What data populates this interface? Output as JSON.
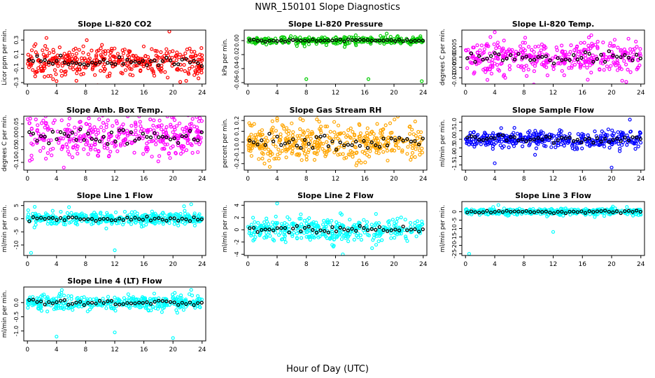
{
  "figure": {
    "title": "NWR_150101  Slope Diagnostics",
    "xlabel": "Hour of Day (UTC)"
  },
  "chart_data": [
    {
      "type": "scatter",
      "title": "Slope Li-820 CO2",
      "ylabel": "Licor ppm per min.",
      "xlim": [
        -0.5,
        24.5
      ],
      "xticks": [
        0,
        4,
        8,
        12,
        16,
        20,
        24
      ],
      "ylim": [
        -0.32,
        0.44
      ],
      "yticks": [
        -0.3,
        -0.1,
        0.1,
        0.3
      ],
      "ytick_labels": [
        "-0.3",
        "-0.1",
        "0.1",
        "0.3"
      ],
      "color": "#ff0000",
      "spread": 0.1,
      "n": 380,
      "mean_points": 45,
      "outliers": [
        [
          4,
          -0.28
        ],
        [
          19.5,
          0.42
        ],
        [
          21,
          -0.29
        ],
        [
          23.5,
          -0.24
        ]
      ]
    },
    {
      "type": "scatter",
      "title": "Slope Li-820 Pressure",
      "ylabel": "kPa per min.",
      "xlim": [
        -0.5,
        24.5
      ],
      "xticks": [
        0,
        4,
        8,
        12,
        16,
        20,
        24
      ],
      "ylim": [
        -0.062,
        0.015
      ],
      "yticks": [
        -0.06,
        -0.04,
        -0.02,
        0
      ],
      "ytick_labels": [
        "-0.06",
        "-0.04",
        "-0.02",
        "0.00"
      ],
      "color": "#00cc00",
      "spread": 0.003,
      "n": 300,
      "mean_points": 45,
      "outliers": [
        [
          8,
          -0.055
        ],
        [
          16.5,
          -0.055
        ],
        [
          23.8,
          -0.058
        ],
        [
          19,
          0.01
        ]
      ]
    },
    {
      "type": "scatter",
      "title": "Slope Li-820 Temp.",
      "ylabel": "degrees C per min.",
      "xlim": [
        -0.5,
        24.5
      ],
      "xticks": [
        0,
        4,
        8,
        12,
        16,
        20,
        24
      ],
      "ylim": [
        -0.013,
        0.013
      ],
      "yticks": [
        -0.01,
        -0.005,
        0,
        0.005
      ],
      "ytick_labels": [
        "-0.010",
        "-0.005",
        "0.000",
        "0.005"
      ],
      "color": "#ff00ff",
      "spread": 0.004,
      "n": 380,
      "mean_points": 45,
      "outliers": [
        [
          4,
          0.012
        ],
        [
          3,
          -0.011
        ],
        [
          22,
          -0.012
        ]
      ]
    },
    {
      "type": "scatter",
      "title": "Slope Amb. Box Temp.",
      "ylabel": "degrees C per min.",
      "xlim": [
        -0.5,
        24.5
      ],
      "xticks": [
        0,
        4,
        8,
        12,
        16,
        20,
        24
      ],
      "ylim": [
        -0.13,
        0.08
      ],
      "yticks": [
        -0.1,
        -0.05,
        0,
        0.05
      ],
      "ytick_labels": [
        "-0.10",
        "-0.05",
        "0.00",
        "0.05"
      ],
      "color": "#ff00ff",
      "spread": 0.04,
      "n": 380,
      "mean_points": 45,
      "outliers": [
        [
          5,
          -0.12
        ]
      ]
    },
    {
      "type": "scatter",
      "title": "Slope Gas Stream RH",
      "ylabel": "percent per min.",
      "xlim": [
        -0.5,
        24.5
      ],
      "xticks": [
        0,
        4,
        8,
        12,
        16,
        20,
        24
      ],
      "ylim": [
        -0.26,
        0.24
      ],
      "yticks": [
        -0.2,
        -0.1,
        0,
        0.1,
        0.2
      ],
      "ytick_labels": [
        "-0.2",
        "-0.1",
        "0.0",
        "0.1",
        "0.2"
      ],
      "color": "#ffa500",
      "spread": 0.09,
      "n": 420,
      "mean_points": 45,
      "outliers": [
        [
          3,
          -0.23
        ],
        [
          4,
          0.22
        ]
      ]
    },
    {
      "type": "scatter",
      "title": "Slope Sample Flow",
      "ylabel": "ml/min per min.",
      "xlim": [
        -0.5,
        24.5
      ],
      "xticks": [
        0,
        4,
        8,
        12,
        16,
        20,
        24
      ],
      "ylim": [
        -1.8,
        1.35
      ],
      "yticks": [
        -1.5,
        -1,
        -0.5,
        0,
        0.5,
        1
      ],
      "ytick_labels": [
        "-1.5",
        "-1.0",
        "-0.5",
        "0.0",
        "0.5",
        "1.0"
      ],
      "color": "#0000ff",
      "spread": 0.25,
      "n": 380,
      "mean_points": 45,
      "outliers": [
        [
          4,
          -1.4
        ],
        [
          20,
          -1.65
        ],
        [
          22.5,
          1.15
        ]
      ]
    },
    {
      "type": "scatter",
      "title": "Slope Line 1 Flow",
      "ylabel": "ml/min per min.",
      "xlim": [
        -0.5,
        24.5
      ],
      "xticks": [
        0,
        4,
        8,
        12,
        16,
        20,
        24
      ],
      "ylim": [
        -14,
        6.5
      ],
      "yticks": [
        -10,
        -5,
        0,
        5
      ],
      "ytick_labels": [
        "-10",
        "-5",
        "0",
        "5"
      ],
      "color": "#00ffff",
      "spread": 1.2,
      "n": 380,
      "mean_points": 45,
      "outliers": [
        [
          0.5,
          -13
        ],
        [
          12,
          -12
        ],
        [
          22.5,
          5.5
        ],
        [
          1,
          4.5
        ]
      ]
    },
    {
      "type": "scatter",
      "title": "Slope Line 2 Flow",
      "ylabel": "ml/min per min.",
      "xlim": [
        -0.5,
        24.5
      ],
      "xticks": [
        0,
        4,
        8,
        12,
        16,
        20,
        24
      ],
      "ylim": [
        -4.2,
        4.6
      ],
      "yticks": [
        -4,
        -2,
        0,
        2,
        4
      ],
      "ytick_labels": [
        "-4",
        "-2",
        "0",
        "2",
        "4"
      ],
      "color": "#00ffff",
      "spread": 0.9,
      "n": 380,
      "mean_points": 45,
      "outliers": [
        [
          4,
          4.3
        ],
        [
          13,
          -4
        ],
        [
          17,
          -3
        ]
      ]
    },
    {
      "type": "scatter",
      "title": "Slope Line 3 Flow",
      "ylabel": "ml/min per min.",
      "xlim": [
        -0.5,
        24.5
      ],
      "xticks": [
        0,
        4,
        8,
        12,
        16,
        20,
        24
      ],
      "ylim": [
        -26,
        6
      ],
      "yticks": [
        -25,
        -20,
        -15,
        -10,
        -5,
        0
      ],
      "ytick_labels": [
        "-25",
        "-20",
        "-15",
        "-10",
        "-5",
        "0"
      ],
      "color": "#00ffff",
      "spread": 1.0,
      "n": 380,
      "mean_points": 45,
      "outliers": [
        [
          0.5,
          -25
        ],
        [
          12,
          -12
        ],
        [
          4.5,
          4
        ]
      ]
    },
    {
      "type": "scatter",
      "title": "Slope Line 4 (LT) Flow",
      "ylabel": "ml/min per min.",
      "xlim": [
        -0.5,
        24.5
      ],
      "xticks": [
        0,
        4,
        8,
        12,
        16,
        20,
        24
      ],
      "ylim": [
        -1.35,
        0.55
      ],
      "yticks": [
        -1,
        -0.5,
        0
      ],
      "ytick_labels": [
        "-1.0",
        "-0.5",
        "0.0"
      ],
      "color": "#00ffff",
      "spread": 0.13,
      "n": 380,
      "mean_points": 45,
      "outliers": [
        [
          4,
          -1.2
        ],
        [
          12,
          -1.05
        ],
        [
          20,
          -1.25
        ],
        [
          22.5,
          0.45
        ]
      ]
    }
  ]
}
